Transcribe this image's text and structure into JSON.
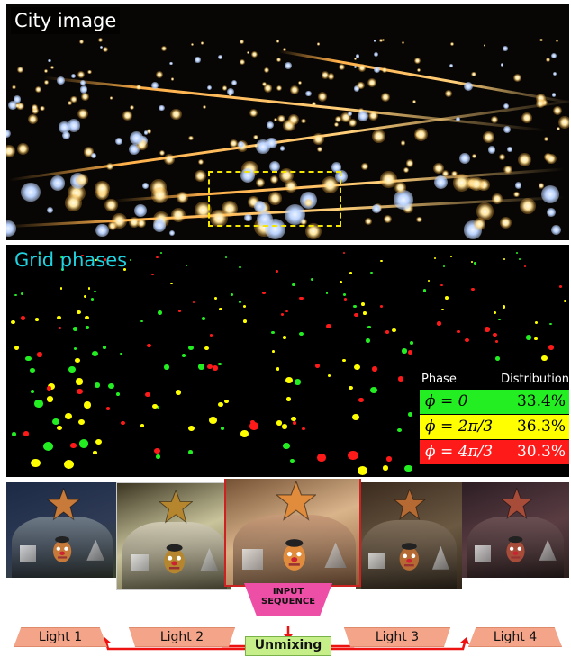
{
  "panels": {
    "city": {
      "label": "City image"
    },
    "grid": {
      "label": "Grid phases"
    }
  },
  "legend": {
    "phase_header": "Phase",
    "distribution_header": "Distribution",
    "rows": [
      {
        "phase": "ϕ = 0",
        "percent": "33.4%",
        "color": "#22ee22"
      },
      {
        "phase": "ϕ = 2π/3",
        "percent": "36.3%",
        "color": "#ffff00"
      },
      {
        "phase": "ϕ = 4π/3",
        "percent": "30.3%",
        "color": "#ff1a1a"
      }
    ]
  },
  "colors": {
    "zoom_box": "#f4e600",
    "grid_label": "#1fd3e0",
    "input_sequence": "#ee4fa6",
    "light_box": "#f3a489",
    "unmixing_box": "#c6ef8a",
    "arrow": "#ee1111"
  },
  "bottom": {
    "input_sequence": "INPUT SEQUENCE",
    "unmixing": "Unmixing",
    "lights": [
      "Light 1",
      "Light 2",
      "Light 3",
      "Light 4"
    ]
  }
}
